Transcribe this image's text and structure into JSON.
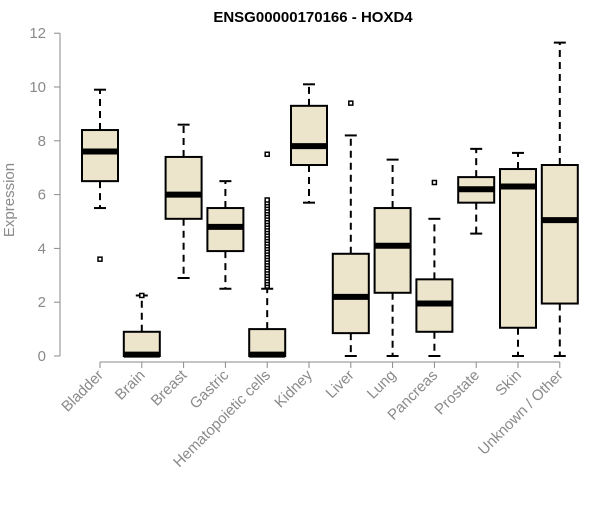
{
  "chart_data": {
    "type": "box",
    "title": "ENSG00000170166 - HOXD4",
    "ylabel": "Expression",
    "xlabel": "",
    "ylim": [
      0,
      12
    ],
    "yticks": [
      0,
      2,
      4,
      6,
      8,
      10,
      12
    ],
    "categories": [
      "Bladder",
      "Brain",
      "Breast",
      "Gastric",
      "Hematopoietic cells",
      "Kidney",
      "Liver",
      "Lung",
      "Pancreas",
      "Prostate",
      "Skin",
      "Unknown / Other"
    ],
    "boxes": [
      {
        "name": "Bladder",
        "whisker_low": 5.5,
        "q1": 6.5,
        "median": 7.6,
        "q3": 8.4,
        "whisker_high": 9.9,
        "outliers": [
          3.6
        ]
      },
      {
        "name": "Brain",
        "whisker_low": 0.0,
        "q1": 0.0,
        "median": 0.05,
        "q3": 0.9,
        "whisker_high": 2.25,
        "outliers": [
          2.25
        ]
      },
      {
        "name": "Breast",
        "whisker_low": 2.9,
        "q1": 5.1,
        "median": 6.0,
        "q3": 7.4,
        "whisker_high": 8.6,
        "outliers": []
      },
      {
        "name": "Gastric",
        "whisker_low": 2.5,
        "q1": 3.9,
        "median": 4.8,
        "q3": 5.5,
        "whisker_high": 6.5,
        "outliers": []
      },
      {
        "name": "Hematopoietic cells",
        "whisker_low": 0.0,
        "q1": 0.0,
        "median": 0.05,
        "q3": 1.0,
        "whisker_high": 2.5,
        "outliers": [
          7.5,
          2.6,
          2.7,
          2.8,
          2.9,
          3.0,
          3.1,
          3.2,
          3.3,
          3.4,
          3.5,
          3.6,
          3.7,
          3.8,
          3.9,
          4.0,
          4.1,
          4.2,
          4.3,
          4.4,
          4.5,
          4.6,
          4.7,
          4.8,
          4.9,
          5.0,
          5.1,
          5.2,
          5.3,
          5.4,
          5.5,
          5.6,
          5.7,
          5.8
        ]
      },
      {
        "name": "Kidney",
        "whisker_low": 5.7,
        "q1": 7.1,
        "median": 7.8,
        "q3": 9.3,
        "whisker_high": 10.1,
        "outliers": []
      },
      {
        "name": "Liver",
        "whisker_low": 0.0,
        "q1": 0.85,
        "median": 2.2,
        "q3": 3.8,
        "whisker_high": 8.2,
        "outliers": [
          9.4
        ]
      },
      {
        "name": "Lung",
        "whisker_low": 0.0,
        "q1": 2.35,
        "median": 4.1,
        "q3": 5.5,
        "whisker_high": 7.3,
        "outliers": []
      },
      {
        "name": "Pancreas",
        "whisker_low": 0.0,
        "q1": 0.9,
        "median": 1.95,
        "q3": 2.85,
        "whisker_high": 5.1,
        "outliers": [
          6.45
        ]
      },
      {
        "name": "Prostate",
        "whisker_low": 4.55,
        "q1": 5.7,
        "median": 6.2,
        "q3": 6.65,
        "whisker_high": 7.7,
        "outliers": []
      },
      {
        "name": "Skin",
        "whisker_low": 0.0,
        "q1": 1.05,
        "median": 6.3,
        "q3": 6.95,
        "whisker_high": 7.55,
        "outliers": []
      },
      {
        "name": "Unknown / Other",
        "whisker_low": 0.0,
        "q1": 1.95,
        "median": 5.05,
        "q3": 7.1,
        "whisker_high": 11.65,
        "outliers": []
      }
    ],
    "colors": {
      "box_fill": "#ede5cb",
      "box_stroke": "#000000",
      "axis": "#8a8a8a",
      "text": "#8a8a8a",
      "title": "#000000"
    }
  }
}
